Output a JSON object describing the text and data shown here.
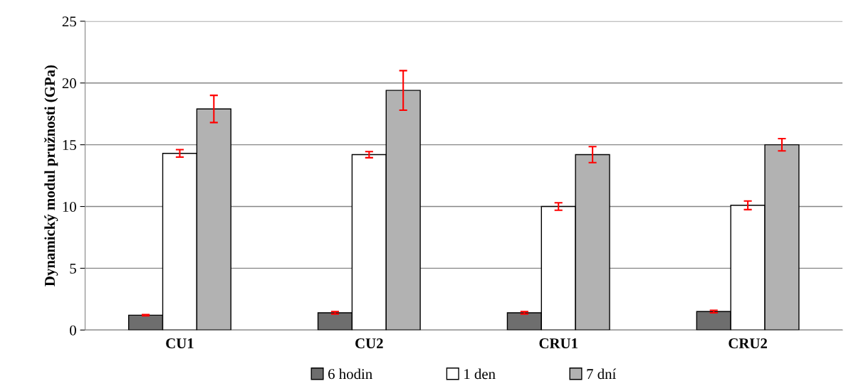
{
  "chart_data": {
    "type": "bar",
    "ylabel": "Dynamický modul pružnosti (GPa)",
    "categories": [
      "CU1",
      "CU2",
      "CRU1",
      "CRU2"
    ],
    "series": [
      {
        "name": "6 hodin",
        "color": "#6e6e6e",
        "values": [
          1.2,
          1.4,
          1.4,
          1.5
        ],
        "errors": [
          0.05,
          0.1,
          0.1,
          0.1
        ]
      },
      {
        "name": "1 den",
        "color": "#ffffff",
        "values": [
          14.3,
          14.2,
          10.0,
          10.1
        ],
        "errors": [
          0.3,
          0.25,
          0.3,
          0.35
        ]
      },
      {
        "name": "7 dní",
        "color": "#b2b2b2",
        "values": [
          17.9,
          19.4,
          14.2,
          15.0
        ],
        "errors": [
          1.1,
          1.6,
          0.65,
          0.5
        ]
      }
    ],
    "ylim": [
      0,
      25
    ],
    "yticks": [
      0,
      5,
      10,
      15,
      20,
      25
    ],
    "grid": "y",
    "legend": "bottom"
  }
}
